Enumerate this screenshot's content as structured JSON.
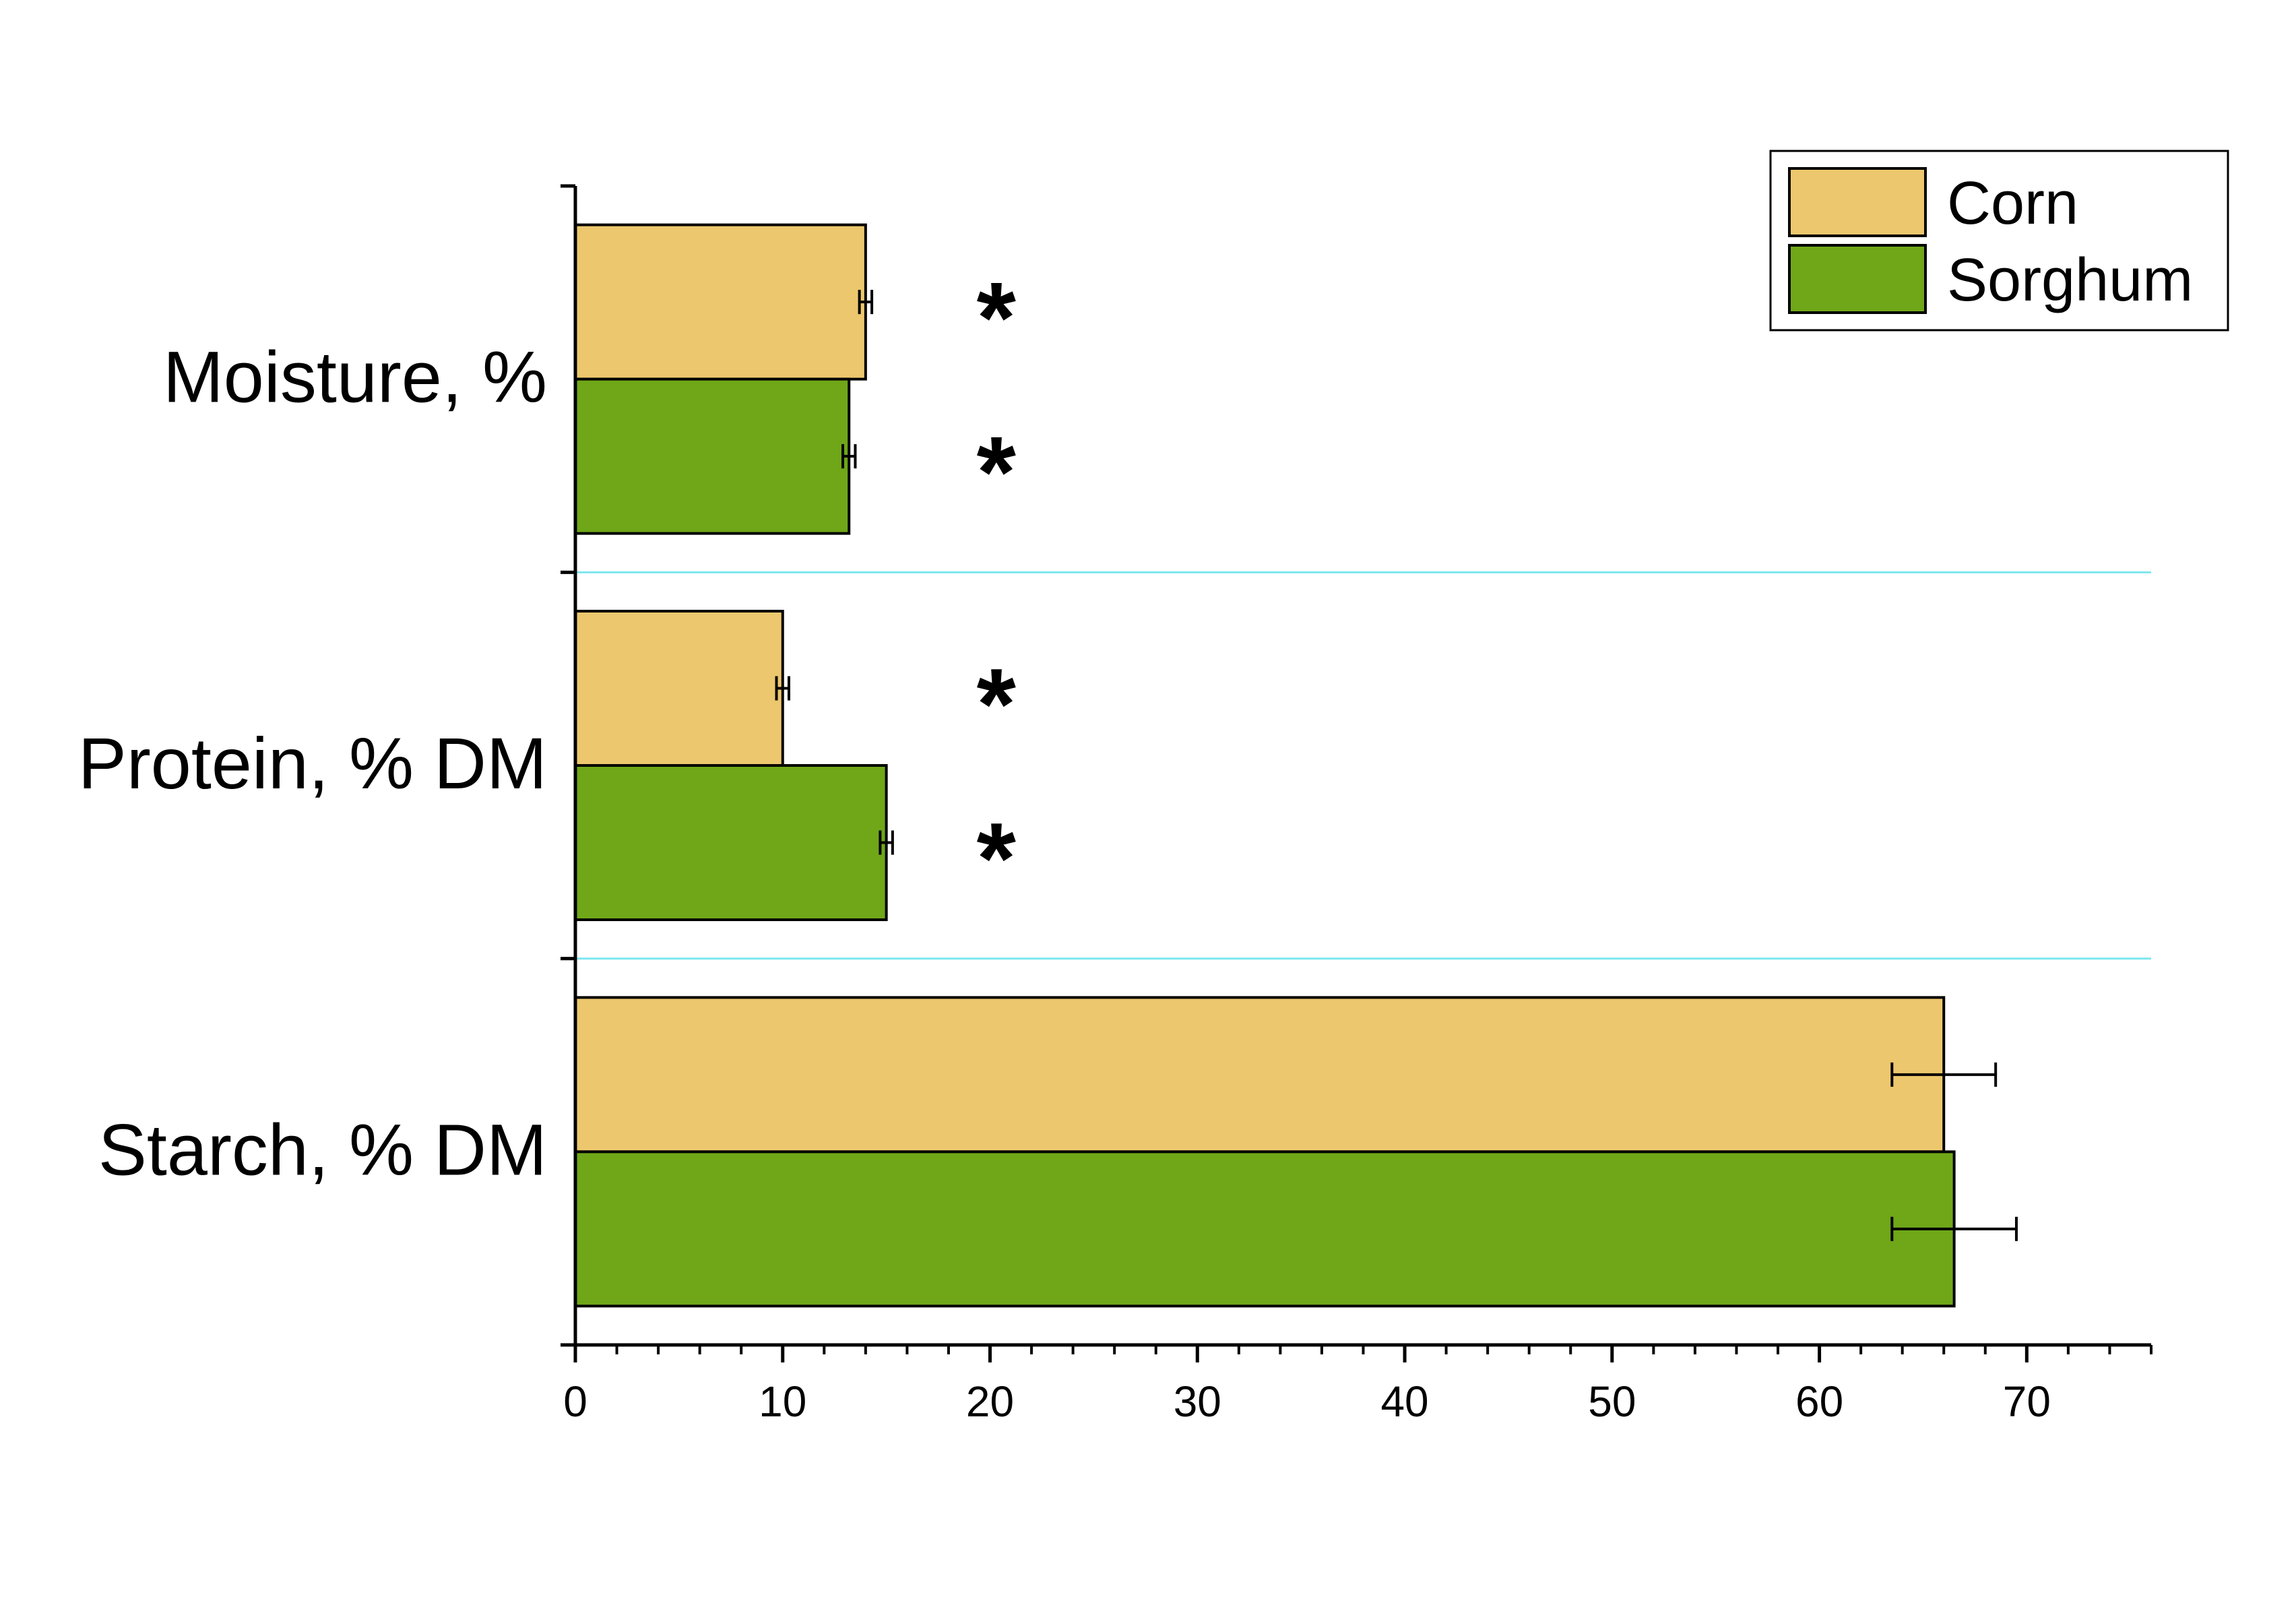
{
  "chart_data": {
    "type": "bar",
    "orientation": "horizontal",
    "categories": [
      "Moisture, %",
      "Protein, % DM",
      "Starch, % DM"
    ],
    "series": [
      {
        "name": "Corn",
        "values": [
          14.0,
          10.0,
          66.0
        ],
        "errors": [
          0.3,
          0.3,
          2.5
        ],
        "significance": [
          "*",
          "*",
          ""
        ]
      },
      {
        "name": "Sorghum",
        "values": [
          13.2,
          15.0,
          66.5
        ],
        "errors": [
          0.3,
          0.3,
          3.0
        ],
        "significance": [
          "*",
          "*",
          ""
        ]
      }
    ],
    "xlim": [
      0,
      76
    ],
    "x_ticks": [
      0,
      10,
      20,
      30,
      40,
      50,
      60,
      70
    ],
    "x_minor_step": 2,
    "significance_marker_x": 20.3,
    "xlabel": "",
    "ylabel": "",
    "grid": "horizontal separators between categories",
    "legend_position": "top-right",
    "colors": {
      "Corn": "#ECC76D",
      "Sorghum": "#6FA718",
      "separator": "#7FE7F0",
      "axis": "#000000"
    }
  }
}
